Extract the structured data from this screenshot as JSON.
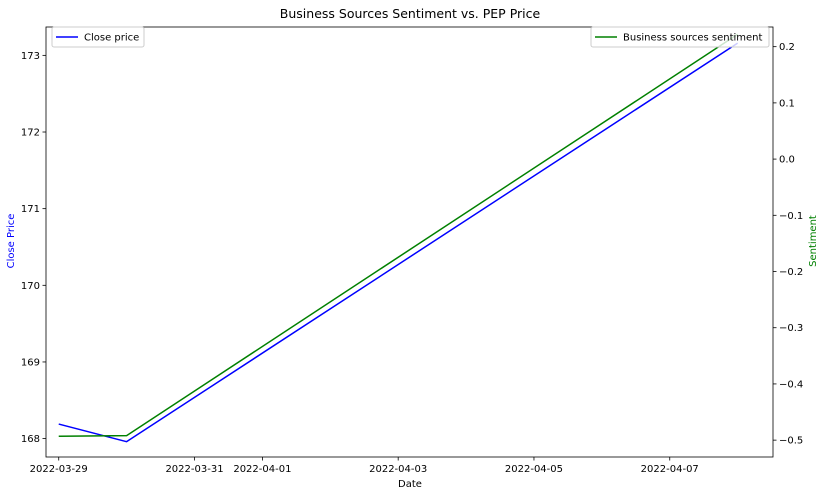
{
  "chart_data": {
    "type": "line",
    "title": "Business Sources Sentiment vs. PEP Price",
    "xlabel": "Date",
    "ylabel_left": "Close Price",
    "ylabel_right": "Sentiment",
    "x_ticks": [
      "2022-03-29",
      "2022-03-31",
      "2022-04-01",
      "2022-04-03",
      "2022-04-05",
      "2022-04-07"
    ],
    "xlim": [
      "2022-03-28 19:30",
      "2022-04-08 12:30"
    ],
    "ylim_left": [
      167.76,
      173.37
    ],
    "ylim_right": [
      -0.53,
      0.235
    ],
    "yticks_left": [
      168,
      169,
      170,
      171,
      172,
      173
    ],
    "yticks_right": [
      -0.5,
      -0.4,
      -0.3,
      -0.2,
      -0.1,
      0.0,
      0.1,
      0.2
    ],
    "grid": false,
    "series": [
      {
        "name": "Close price",
        "axis": "left",
        "color": "#0000ff",
        "x": [
          "2022-03-29",
          "2022-03-30",
          "2022-04-08"
        ],
        "y": [
          168.19,
          167.96,
          173.16
        ]
      },
      {
        "name": "Business sources sentiment",
        "axis": "right",
        "color": "#008000",
        "x": [
          "2022-03-29",
          "2022-03-30",
          "2022-04-08"
        ],
        "y": [
          -0.493,
          -0.492,
          0.222
        ]
      }
    ],
    "legends": [
      {
        "series": "Close price",
        "placement": "upper-left"
      },
      {
        "series": "Business sources sentiment",
        "placement": "upper-right"
      }
    ]
  }
}
